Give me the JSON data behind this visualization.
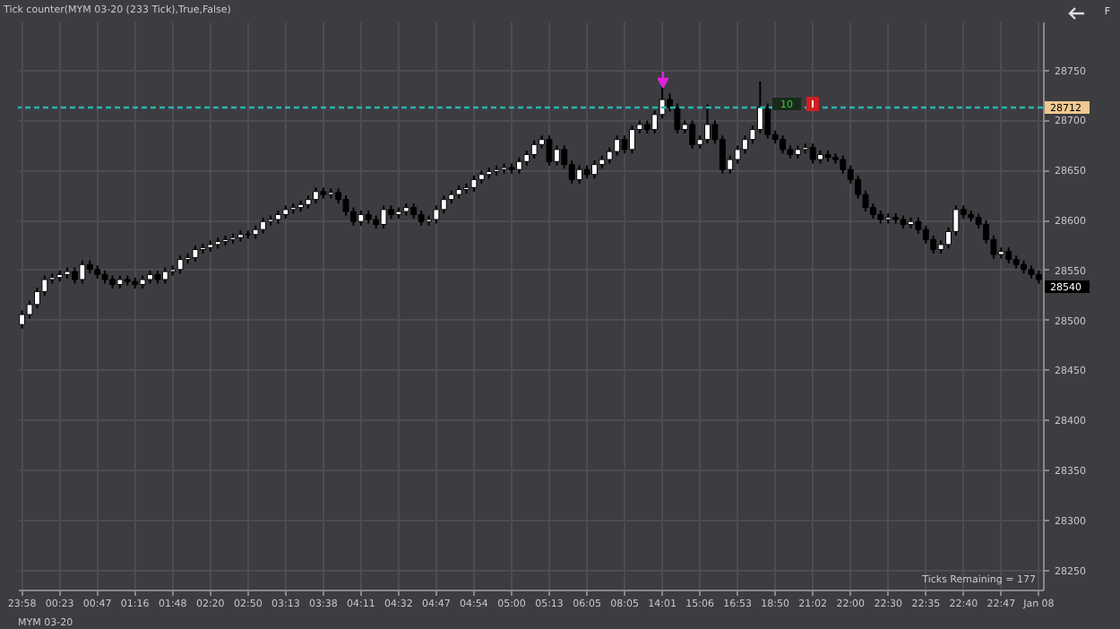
{
  "chart_data": {
    "type": "candlestick",
    "title": "Tick counter(MYM 03-20 (233 Tick),True,False)",
    "categories": [
      "23:58",
      null,
      null,
      null,
      null,
      "00:23",
      null,
      null,
      null,
      null,
      "00:47",
      null,
      null,
      null,
      null,
      "01:16",
      null,
      null,
      null,
      null,
      "01:48",
      null,
      null,
      null,
      null,
      "02:20",
      null,
      null,
      null,
      null,
      "02:50",
      null,
      null,
      null,
      null,
      "03:13",
      null,
      null,
      null,
      null,
      "03:38",
      null,
      null,
      null,
      null,
      "04:11",
      null,
      null,
      null,
      null,
      "04:32",
      null,
      null,
      null,
      null,
      "04:47",
      null,
      null,
      null,
      null,
      "04:54",
      null,
      null,
      null,
      null,
      "05:00",
      null,
      null,
      null,
      null,
      "05:13",
      null,
      null,
      null,
      null,
      "06:05",
      null,
      null,
      null,
      null,
      "08:05",
      null,
      null,
      null,
      null,
      "14:01",
      null,
      null,
      null,
      null,
      "15:06",
      null,
      null,
      null,
      null,
      "16:53",
      null,
      null,
      null,
      null,
      "18:50",
      null,
      null,
      null,
      null,
      "21:02",
      null,
      null,
      null,
      null,
      "22:00",
      null,
      null,
      null,
      null,
      "22:30",
      null,
      null,
      null,
      null,
      "22:35",
      null,
      null,
      null,
      null,
      "22:40",
      null,
      null,
      null,
      null,
      "22:47",
      null,
      null,
      null,
      null,
      "Jan 08"
    ],
    "ohlc": [
      [
        28495,
        28509,
        28491,
        28505
      ],
      [
        28505,
        28519,
        28501,
        28515
      ],
      [
        28515,
        28532,
        28511,
        28528
      ],
      [
        28528,
        28544,
        28524,
        28540
      ],
      [
        28540,
        28546,
        28536,
        28542
      ],
      [
        28542,
        28549,
        28538,
        28545
      ],
      [
        28545,
        28552,
        28541,
        28548
      ],
      [
        28548,
        28552,
        28536,
        28540
      ],
      [
        28540,
        28559,
        28536,
        28555
      ],
      [
        28555,
        28559,
        28546,
        28550
      ],
      [
        28550,
        28554,
        28541,
        28545
      ],
      [
        28545,
        28549,
        28536,
        28540
      ],
      [
        28540,
        28544,
        28531,
        28535
      ],
      [
        28535,
        28544,
        28531,
        28540
      ],
      [
        28540,
        28544,
        28534,
        28538
      ],
      [
        28538,
        28542,
        28531,
        28535
      ],
      [
        28535,
        28544,
        28531,
        28540
      ],
      [
        28540,
        28549,
        28536,
        28545
      ],
      [
        28545,
        28549,
        28536,
        28540
      ],
      [
        28540,
        28552,
        28536,
        28548
      ],
      [
        28548,
        28554,
        28544,
        28550
      ],
      [
        28550,
        28564,
        28546,
        28560
      ],
      [
        28560,
        28566,
        28556,
        28562
      ],
      [
        28562,
        28574,
        28558,
        28570
      ],
      [
        28570,
        28576,
        28566,
        28572
      ],
      [
        28572,
        28579,
        28568,
        28575
      ],
      [
        28575,
        28582,
        28571,
        28578
      ],
      [
        28578,
        28584,
        28574,
        28580
      ],
      [
        28580,
        28586,
        28576,
        28582
      ],
      [
        28582,
        28589,
        28578,
        28585
      ],
      [
        28585,
        28589,
        28581,
        28585
      ],
      [
        28585,
        28594,
        28581,
        28590
      ],
      [
        28590,
        28602,
        28586,
        28598
      ],
      [
        28598,
        28604,
        28594,
        28600
      ],
      [
        28600,
        28609,
        28596,
        28605
      ],
      [
        28605,
        28614,
        28601,
        28610
      ],
      [
        28610,
        28616,
        28606,
        28612
      ],
      [
        28612,
        28619,
        28608,
        28615
      ],
      [
        28615,
        28624,
        28611,
        28620
      ],
      [
        28620,
        28632,
        28616,
        28628
      ],
      [
        28628,
        28632,
        28621,
        28625
      ],
      [
        28625,
        28631,
        28621,
        28627
      ],
      [
        28627,
        28631,
        28616,
        28620
      ],
      [
        28620,
        28624,
        28604,
        28608
      ],
      [
        28608,
        28612,
        28594,
        28598
      ],
      [
        28598,
        28609,
        28594,
        28605
      ],
      [
        28605,
        28609,
        28596,
        28600
      ],
      [
        28600,
        28604,
        28591,
        28595
      ],
      [
        28595,
        28614,
        28591,
        28610
      ],
      [
        28610,
        28614,
        28601,
        28605
      ],
      [
        28605,
        28612,
        28601,
        28608
      ],
      [
        28608,
        28616,
        28604,
        28612
      ],
      [
        28612,
        28616,
        28601,
        28605
      ],
      [
        28605,
        28609,
        28594,
        28598
      ],
      [
        28598,
        28604,
        28594,
        28600
      ],
      [
        28600,
        28614,
        28596,
        28610
      ],
      [
        28610,
        28624,
        28606,
        28620
      ],
      [
        28620,
        28629,
        28616,
        28625
      ],
      [
        28625,
        28634,
        28621,
        28630
      ],
      [
        28630,
        28636,
        28626,
        28632
      ],
      [
        28632,
        28644,
        28628,
        28640
      ],
      [
        28640,
        28649,
        28636,
        28645
      ],
      [
        28645,
        28652,
        28641,
        28648
      ],
      [
        28648,
        28654,
        28644,
        28650
      ],
      [
        28650,
        28656,
        28646,
        28652
      ],
      [
        28652,
        28656,
        28646,
        28650
      ],
      [
        28650,
        28662,
        28646,
        28658
      ],
      [
        28658,
        28669,
        28654,
        28665
      ],
      [
        28665,
        28679,
        28661,
        28675
      ],
      [
        28675,
        28684,
        28671,
        28680
      ],
      [
        28680,
        28684,
        28654,
        28658
      ],
      [
        28658,
        28674,
        28654,
        28670
      ],
      [
        28670,
        28674,
        28651,
        28655
      ],
      [
        28655,
        28659,
        28636,
        28640
      ],
      [
        28640,
        28654,
        28636,
        28650
      ],
      [
        28650,
        28654,
        28641,
        28645
      ],
      [
        28645,
        28659,
        28641,
        28655
      ],
      [
        28655,
        28664,
        28651,
        28660
      ],
      [
        28660,
        28672,
        28656,
        28668
      ],
      [
        28668,
        28684,
        28664,
        28680
      ],
      [
        28680,
        28684,
        28666,
        28670
      ],
      [
        28670,
        28694,
        28666,
        28690
      ],
      [
        28690,
        28699,
        28686,
        28695
      ],
      [
        28695,
        28699,
        28686,
        28690
      ],
      [
        28690,
        28709,
        28686,
        28705
      ],
      [
        28705,
        28737,
        28701,
        28720
      ],
      [
        28720,
        28726,
        28708,
        28712
      ],
      [
        28712,
        28716,
        28686,
        28690
      ],
      [
        28690,
        28699,
        28686,
        28695
      ],
      [
        28695,
        28699,
        28671,
        28675
      ],
      [
        28675,
        28684,
        28671,
        28680
      ],
      [
        28680,
        28715,
        28676,
        28695
      ],
      [
        28695,
        28699,
        28676,
        28680
      ],
      [
        28680,
        28684,
        28646,
        28650
      ],
      [
        28650,
        28664,
        28646,
        28660
      ],
      [
        28660,
        28674,
        28656,
        28670
      ],
      [
        28670,
        28684,
        28666,
        28680
      ],
      [
        28680,
        28694,
        28676,
        28690
      ],
      [
        28690,
        28738,
        28686,
        28712
      ],
      [
        28712,
        28716,
        28681,
        28685
      ],
      [
        28685,
        28689,
        28676,
        28680
      ],
      [
        28680,
        28684,
        28666,
        28670
      ],
      [
        28670,
        28674,
        28661,
        28665
      ],
      [
        28665,
        28674,
        28661,
        28670
      ],
      [
        28670,
        28676,
        28666,
        28672
      ],
      [
        28672,
        28676,
        28656,
        28660
      ],
      [
        28660,
        28669,
        28656,
        28665
      ],
      [
        28665,
        28669,
        28658,
        28662
      ],
      [
        28662,
        28666,
        28656,
        28660
      ],
      [
        28660,
        28664,
        28646,
        28650
      ],
      [
        28650,
        28654,
        28636,
        28640
      ],
      [
        28640,
        28644,
        28621,
        28625
      ],
      [
        28625,
        28629,
        28608,
        28612
      ],
      [
        28612,
        28616,
        28601,
        28605
      ],
      [
        28605,
        28609,
        28596,
        28600
      ],
      [
        28600,
        28606,
        28596,
        28602
      ],
      [
        28602,
        28606,
        28596,
        28600
      ],
      [
        28600,
        28604,
        28591,
        28595
      ],
      [
        28595,
        28602,
        28591,
        28598
      ],
      [
        28598,
        28602,
        28586,
        28590
      ],
      [
        28590,
        28594,
        28576,
        28580
      ],
      [
        28580,
        28584,
        28566,
        28570
      ],
      [
        28570,
        28579,
        28566,
        28575
      ],
      [
        28575,
        28592,
        28571,
        28588
      ],
      [
        28588,
        28614,
        28584,
        28610
      ],
      [
        28610,
        28614,
        28601,
        28605
      ],
      [
        28605,
        28609,
        28598,
        28602
      ],
      [
        28602,
        28606,
        28591,
        28595
      ],
      [
        28595,
        28599,
        28576,
        28580
      ],
      [
        28580,
        28584,
        28561,
        28565
      ],
      [
        28565,
        28572,
        28561,
        28568
      ],
      [
        28568,
        28572,
        28556,
        28560
      ],
      [
        28560,
        28564,
        28551,
        28555
      ],
      [
        28555,
        28559,
        28546,
        28550
      ],
      [
        28550,
        28554,
        28541,
        28545
      ],
      [
        28545,
        28549,
        28536,
        28540
      ]
    ],
    "colors": [
      "#ffffff",
      "#ffffff",
      "#ffffff",
      "#ffffff",
      "#ffffff",
      "#ffffff",
      "#ffffff",
      "#000000",
      "#ffffff",
      "#000000",
      "#000000",
      "#000000",
      "#000000",
      "#ffffff",
      "#000000",
      "#000000",
      "#ffffff",
      "#ffffff",
      "#000000",
      "#ffffff",
      "#ffffff",
      "#ffffff",
      "#ffffff",
      "#ffffff",
      "#ffffff",
      "#ffffff",
      "#ffffff",
      "#ffffff",
      "#ffffff",
      "#ffffff",
      "#000000",
      "#ffffff",
      "#ffffff",
      "#ffffff",
      "#ffffff",
      "#ffffff",
      "#ffffff",
      "#ffffff",
      "#ffffff",
      "#ffffff",
      "#000000",
      "#ffffff",
      "#000000",
      "#000000",
      "#000000",
      "#ffffff",
      "#000000",
      "#000000",
      "#ffffff",
      "#000000",
      "#ffffff",
      "#ffffff",
      "#000000",
      "#000000",
      "#ffffff",
      "#ffffff",
      "#ffffff",
      "#ffffff",
      "#ffffff",
      "#ffffff",
      "#ffffff",
      "#ffffff",
      "#ffffff",
      "#ffffff",
      "#ffffff",
      "#000000",
      "#ffffff",
      "#ffffff",
      "#ffffff",
      "#ffffff",
      "#000000",
      "#ffffff",
      "#000000",
      "#000000",
      "#ffffff",
      "#000000",
      "#ffffff",
      "#ffffff",
      "#ffffff",
      "#ffffff",
      "#000000",
      "#ffffff",
      "#ffffff",
      "#000000",
      "#ffffff",
      "#ffffff",
      "#000000",
      "#000000",
      "#ffffff",
      "#000000",
      "#ffffff",
      "#ffffff",
      "#000000",
      "#000000",
      "#ffffff",
      "#ffffff",
      "#ffffff",
      "#ffffff",
      "#ffffff",
      "#000000",
      "#000000",
      "#000000",
      "#000000",
      "#ffffff",
      "#ffffff",
      "#000000",
      "#ffffff",
      "#000000",
      "#000000",
      "#000000",
      "#000000",
      "#000000",
      "#000000",
      "#000000",
      "#000000",
      "#ffffff",
      "#000000",
      "#000000",
      "#ffffff",
      "#000000",
      "#000000",
      "#000000",
      "#ffffff",
      "#ffffff",
      "#ffffff",
      "#000000",
      "#000000",
      "#000000",
      "#000000",
      "#000000",
      "#ffffff",
      "#000000",
      "#000000",
      "#000000",
      "#000000",
      "#000000"
    ],
    "ylim": [
      28230,
      28798
    ],
    "yticks": [
      28250,
      28300,
      28350,
      28400,
      28450,
      28500,
      28550,
      28600,
      28650,
      28700,
      28750
    ],
    "grid": true,
    "ref_lines": [
      {
        "axis": "y",
        "value": 28712,
        "label": "28712",
        "color": "#2ab3b3",
        "line_style": "dashed"
      }
    ],
    "annotations": [
      "Ticks Remaining = 177",
      "MYM 03-20",
      "28540",
      "10",
      "F"
    ]
  }
}
